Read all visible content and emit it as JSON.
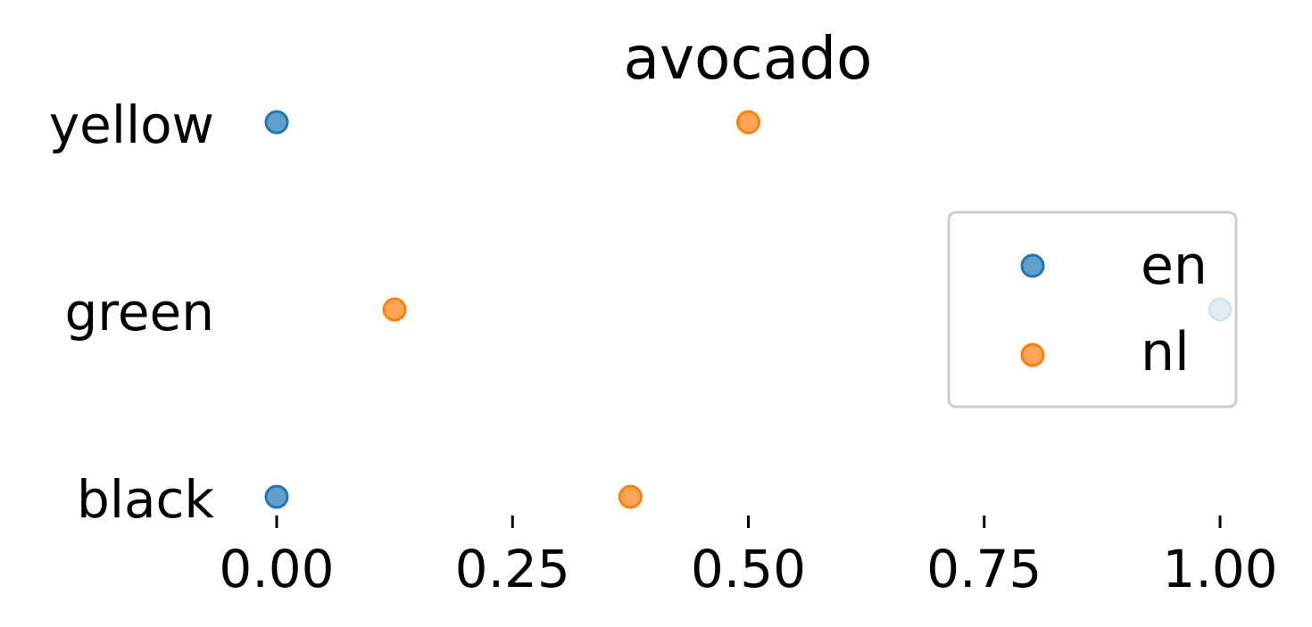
{
  "chart_data": {
    "type": "scatter",
    "title": "avocado",
    "xlabel": "",
    "ylabel": "",
    "categories": [
      "black",
      "green",
      "yellow"
    ],
    "xlim": [
      0,
      1
    ],
    "x_ticks": [
      "0.00",
      "0.25",
      "0.50",
      "0.75",
      "1.00"
    ],
    "x_tick_values": [
      0,
      0.25,
      0.5,
      0.75,
      1.0
    ],
    "grid": false,
    "legend_position": "right",
    "series": [
      {
        "name": "en",
        "color": "#1f77b4",
        "points": [
          {
            "category": "yellow",
            "x": 0.0
          },
          {
            "category": "green",
            "x": 1.0
          },
          {
            "category": "black",
            "x": 0.0
          }
        ]
      },
      {
        "name": "nl",
        "color": "#ff7f0e",
        "points": [
          {
            "category": "yellow",
            "x": 0.5
          },
          {
            "category": "green",
            "x": 0.125
          },
          {
            "category": "black",
            "x": 0.375
          }
        ]
      }
    ]
  }
}
